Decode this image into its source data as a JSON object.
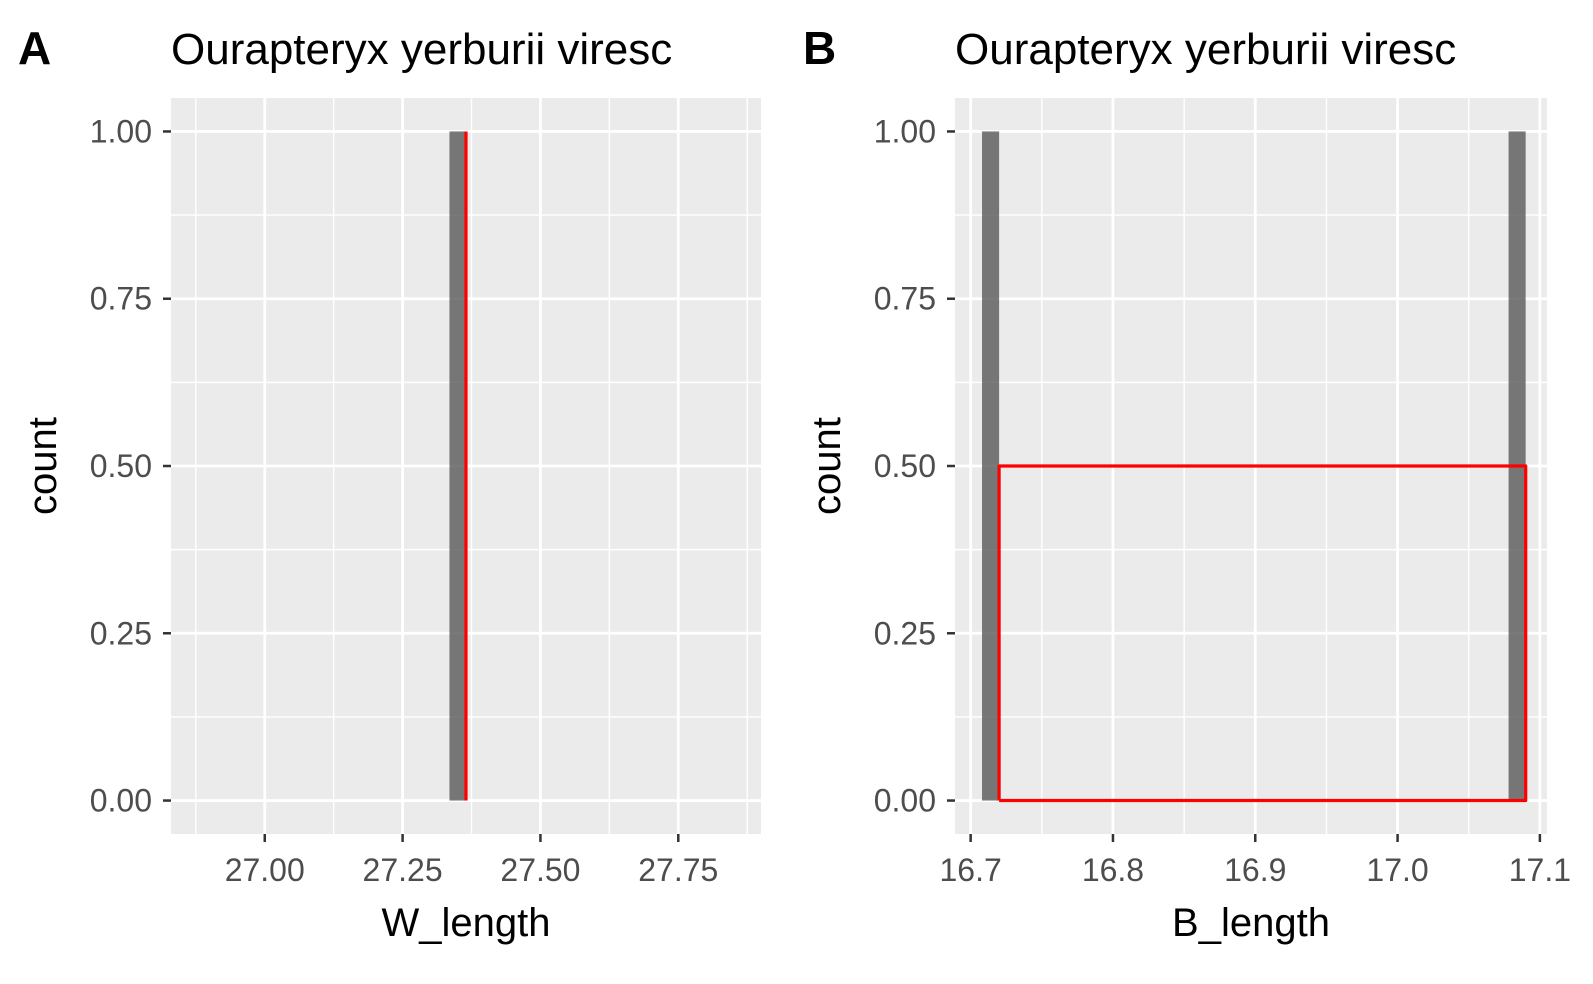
{
  "colors": {
    "panel_background": "#ebebeb",
    "grid": "#ffffff",
    "bar_fill": "#595959",
    "bar_opacity": 0.8,
    "overlay": "#ff0000",
    "tick": "#333333",
    "tick_label": "#4d4d4d"
  },
  "chart_data": [
    {
      "panel": "A",
      "type": "bar",
      "title": "Ourapteryx yerburii viresc",
      "xlabel": "W_length",
      "ylabel": "count",
      "xlim": [
        26.83,
        27.9
      ],
      "ylim": [
        -0.05,
        1.05
      ],
      "x_ticks": [
        27.0,
        27.25,
        27.5,
        27.75
      ],
      "x_tick_labels": [
        "27.00",
        "27.25",
        "27.50",
        "27.75"
      ],
      "y_ticks": [
        0,
        0.25,
        0.5,
        0.75,
        1.0
      ],
      "y_tick_labels": [
        "0.00",
        "0.25",
        "0.50",
        "0.75",
        "1.00"
      ],
      "grid": true,
      "histogram": [
        {
          "xmin": 27.335,
          "xmax": 27.365,
          "count": 1
        }
      ],
      "overlay_line": {
        "color": "red",
        "points": [
          [
            27.365,
            0
          ],
          [
            27.365,
            1
          ]
        ]
      }
    },
    {
      "panel": "B",
      "type": "bar",
      "title": "Ourapteryx yerburii viresc",
      "xlabel": "B_length",
      "ylabel": "count",
      "xlim": [
        16.689,
        17.105
      ],
      "ylim": [
        -0.05,
        1.05
      ],
      "x_ticks": [
        16.7,
        16.8,
        16.9,
        17.0,
        17.1
      ],
      "x_tick_labels": [
        "16.7",
        "16.8",
        "16.9",
        "17.0",
        "17.1"
      ],
      "y_ticks": [
        0,
        0.25,
        0.5,
        0.75,
        1.0
      ],
      "y_tick_labels": [
        "0.00",
        "0.25",
        "0.50",
        "0.75",
        "1.00"
      ],
      "grid": true,
      "histogram": [
        {
          "xmin": 16.708,
          "xmax": 16.72,
          "count": 1
        },
        {
          "xmin": 17.078,
          "xmax": 17.09,
          "count": 1
        }
      ],
      "overlay_line": {
        "color": "red",
        "points": [
          [
            16.72,
            0
          ],
          [
            16.72,
            0.5
          ],
          [
            17.09,
            0.5
          ],
          [
            17.09,
            0
          ],
          [
            16.72,
            0
          ]
        ]
      }
    }
  ]
}
